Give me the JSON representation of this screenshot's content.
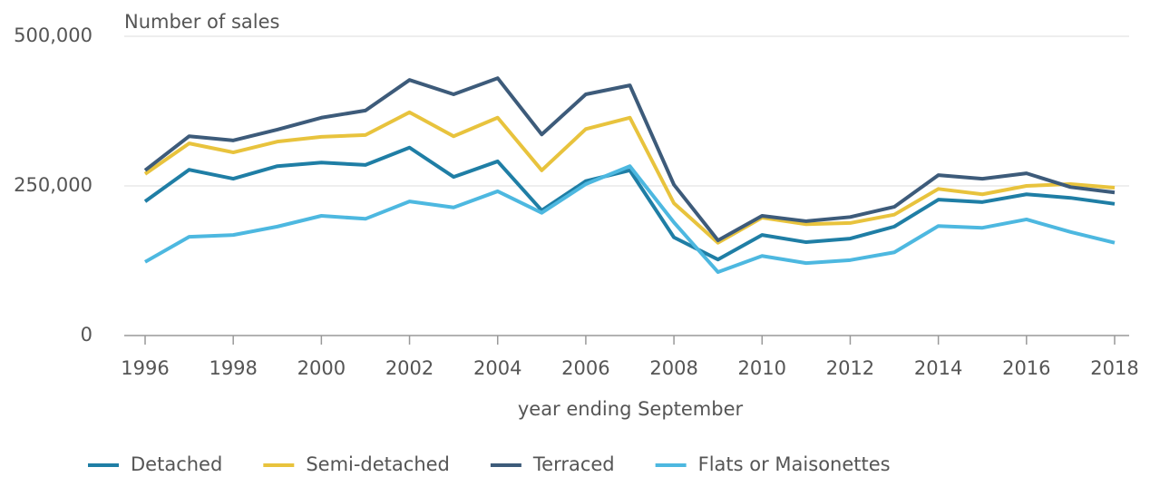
{
  "chart_data": {
    "type": "line",
    "y_label": "Number of sales",
    "x_label": "year ending September",
    "x": [
      1996,
      1997,
      1998,
      1999,
      2000,
      2001,
      2002,
      2003,
      2004,
      2005,
      2006,
      2007,
      2008,
      2009,
      2010,
      2011,
      2012,
      2013,
      2014,
      2015,
      2016,
      2017,
      2018
    ],
    "series": [
      {
        "name": "Detached",
        "color": "#1f7ea5",
        "values": [
          224000,
          277000,
          262000,
          283000,
          289000,
          285000,
          314000,
          265000,
          291000,
          209000,
          258000,
          276000,
          164000,
          127000,
          168000,
          156000,
          162000,
          182000,
          227000,
          223000,
          236000,
          230000,
          220000
        ]
      },
      {
        "name": "Semi-detached",
        "color": "#e8c33d",
        "values": [
          270000,
          321000,
          306000,
          324000,
          332000,
          335000,
          373000,
          333000,
          364000,
          276000,
          345000,
          364000,
          221000,
          155000,
          197000,
          186000,
          188000,
          202000,
          245000,
          236000,
          250000,
          253000,
          247000
        ]
      },
      {
        "name": "Terraced",
        "color": "#3d5b7a",
        "values": [
          276000,
          333000,
          326000,
          344000,
          364000,
          376000,
          427000,
          403000,
          430000,
          336000,
          403000,
          418000,
          252000,
          159000,
          200000,
          191000,
          198000,
          215000,
          268000,
          262000,
          271000,
          248000,
          239000
        ]
      },
      {
        "name": "Flats or Maisonettes",
        "color": "#4db8e0",
        "values": [
          123000,
          165000,
          168000,
          182000,
          200000,
          195000,
          224000,
          214000,
          241000,
          205000,
          253000,
          283000,
          189000,
          106000,
          133000,
          121000,
          126000,
          139000,
          183000,
          180000,
          194000,
          173000,
          155000
        ]
      }
    ],
    "xlim": [
      1996,
      2018
    ],
    "xticks": [
      1996,
      1998,
      2000,
      2002,
      2004,
      2006,
      2008,
      2010,
      2012,
      2014,
      2016,
      2018
    ],
    "ylim": [
      0,
      500000
    ],
    "yticks": [
      0,
      {
        "value": 250000,
        "label": "250,000"
      },
      {
        "value": 500000,
        "label": "500,000"
      }
    ],
    "grid": true,
    "legend": "bottom"
  }
}
